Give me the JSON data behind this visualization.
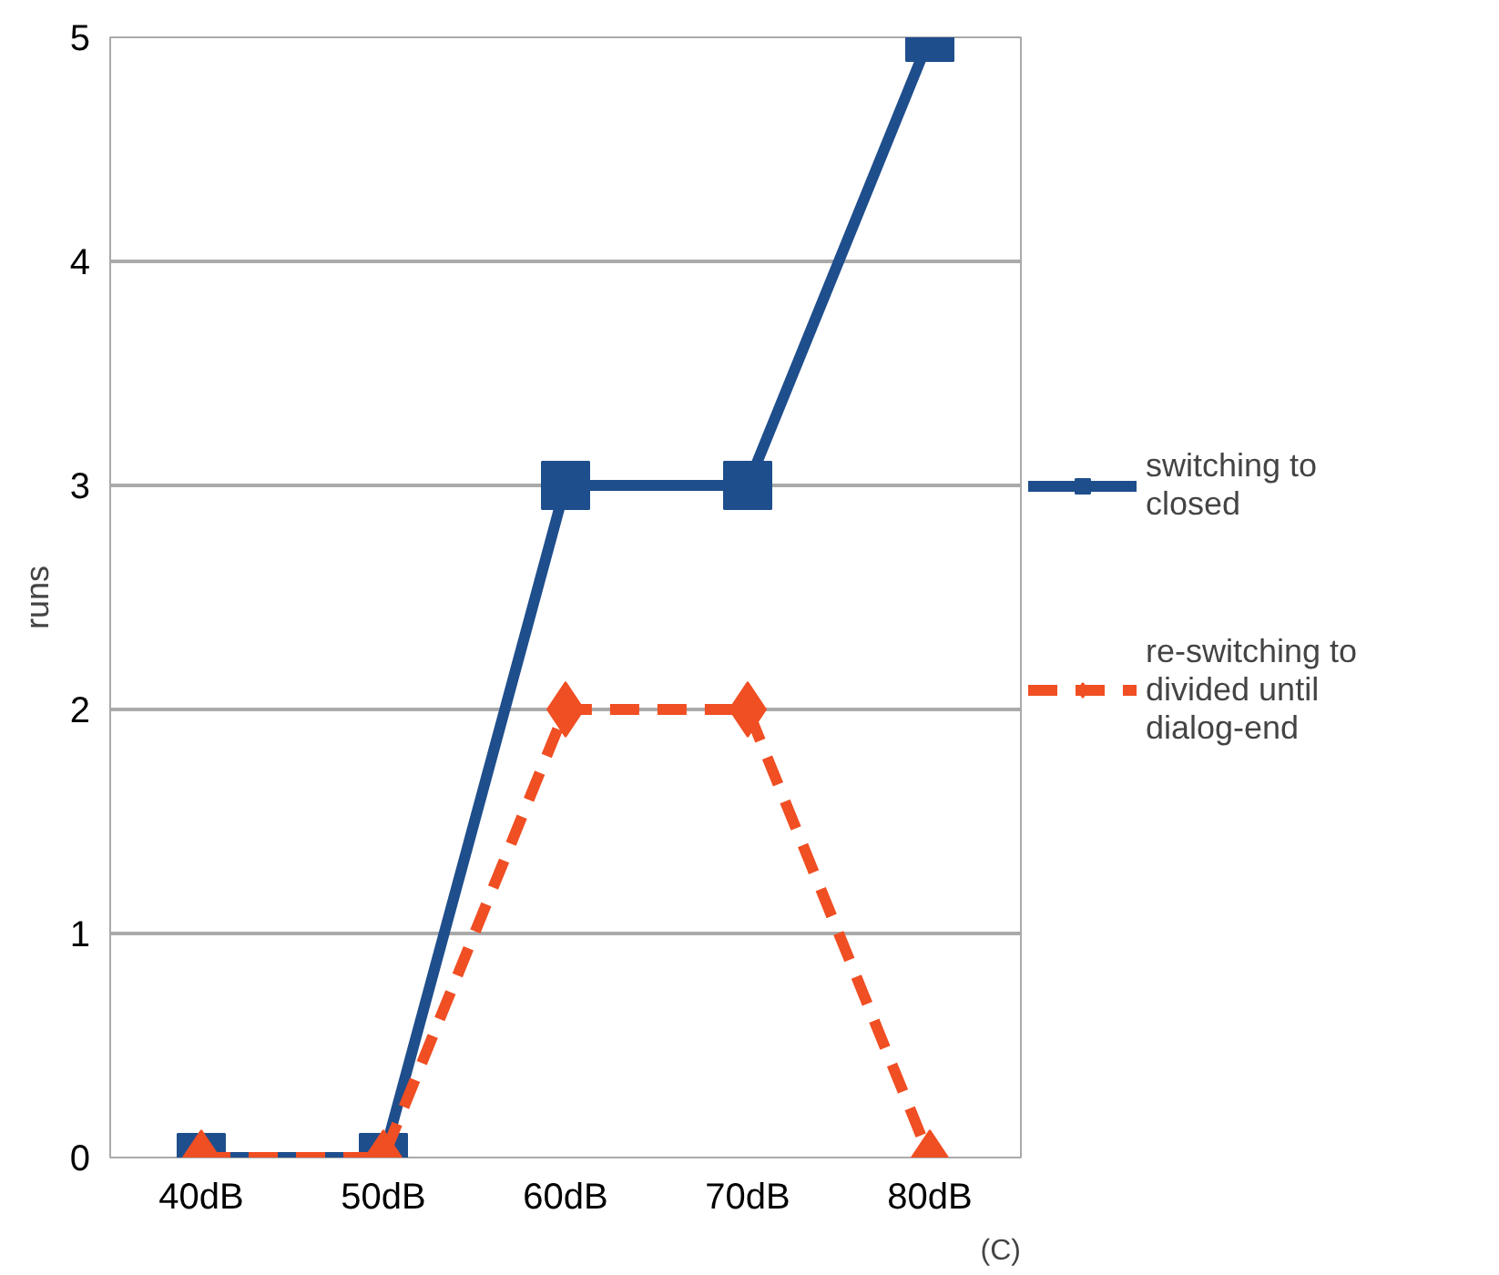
{
  "chart_data": {
    "type": "line",
    "ylabel": "runs",
    "categories": [
      "40dB",
      "50dB",
      "60dB",
      "70dB",
      "80dB"
    ],
    "series": [
      {
        "name": "switching to closed",
        "color": "#1f4e8c",
        "values": [
          0,
          0,
          3,
          3,
          5
        ],
        "marker": "square",
        "line_style": "solid"
      },
      {
        "name": "re-switching to divided until dialog-end",
        "color": "#f04e23",
        "values": [
          0,
          0,
          2,
          2,
          0
        ],
        "marker": "diamond",
        "line_style": "dashed"
      }
    ],
    "ylim": [
      0,
      5
    ],
    "yticks": [
      0,
      1,
      2,
      3,
      4,
      5
    ],
    "grid": "y",
    "legend": "right",
    "annotations": [
      "(C)"
    ]
  }
}
